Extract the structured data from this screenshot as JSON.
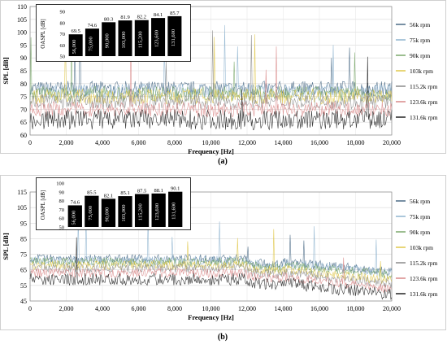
{
  "chart_data": [
    {
      "panel_label": "(a)",
      "type": "line",
      "xlabel": "Frequency [Hz]",
      "ylabel": "SPL [dB]",
      "xlim": [
        0,
        20000
      ],
      "ylim": [
        60,
        110
      ],
      "x_ticks": [
        "0",
        "2,000",
        "4,000",
        "6,000",
        "8,000",
        "10,000",
        "12,000",
        "14,000",
        "16,000",
        "18,000",
        "20,000"
      ],
      "y_ticks": [
        "60",
        "65",
        "70",
        "75",
        "80",
        "85",
        "90",
        "95",
        "100",
        "105",
        "110"
      ],
      "grid": true,
      "legend_position": "right",
      "series": [
        {
          "name": "56k rpm",
          "color": "#4a6a86",
          "approx_level_db": 78
        },
        {
          "name": "75k rpm",
          "color": "#8fb4cf",
          "approx_level_db": 77
        },
        {
          "name": "90k rpm",
          "color": "#7aa86a",
          "approx_level_db": 76
        },
        {
          "name": "103k rpm",
          "color": "#e0c84a",
          "approx_level_db": 75
        },
        {
          "name": "115.2k rpm",
          "color": "#8a8a8a",
          "approx_level_db": 73
        },
        {
          "name": "123.6k rpm",
          "color": "#d98888",
          "approx_level_db": 70
        },
        {
          "name": "131.6k rpm",
          "color": "#222222",
          "approx_level_db": 66
        }
      ],
      "inset": {
        "type": "bar",
        "ylabel": "OASPL [dB]",
        "ylim": [
          50,
          90
        ],
        "y_ticks": [
          "50",
          "60",
          "70",
          "80",
          "90"
        ],
        "categories": [
          "56,000",
          "75,000",
          "90,000",
          "103,000",
          "115,200",
          "123,600",
          "131,600"
        ],
        "values": [
          69.5,
          74.6,
          80.3,
          81.9,
          82.2,
          84.1,
          85.7
        ],
        "value_labels": [
          "69.5",
          "74.6",
          "80.3",
          "81.9",
          "82.2",
          "84.1",
          "85.7"
        ],
        "bar_color": "#000000"
      }
    },
    {
      "panel_label": "(b)",
      "type": "line",
      "xlabel": "Frequency [Hz]",
      "ylabel": "SPL [dB]",
      "xlim": [
        0,
        20000
      ],
      "ylim": [
        45,
        115
      ],
      "x_ticks": [
        "0",
        "2,000",
        "4,000",
        "6,000",
        "8,000",
        "10,000",
        "12,000",
        "14,000",
        "16,000",
        "18,000",
        "20,000"
      ],
      "y_ticks": [
        "45",
        "55",
        "65",
        "75",
        "85",
        "95",
        "105",
        "115"
      ],
      "grid": true,
      "legend_position": "right",
      "series": [
        {
          "name": "56k rpm",
          "color": "#4a6a86",
          "approx_level_db": 72
        },
        {
          "name": "75k rpm",
          "color": "#8fb4cf",
          "approx_level_db": 71
        },
        {
          "name": "90k rpm",
          "color": "#7aa86a",
          "approx_level_db": 70
        },
        {
          "name": "103k rpm",
          "color": "#e0c84a",
          "approx_level_db": 68
        },
        {
          "name": "115.2k rpm",
          "color": "#8a8a8a",
          "approx_level_db": 66
        },
        {
          "name": "123.6k rpm",
          "color": "#d98888",
          "approx_level_db": 63
        },
        {
          "name": "131.6k rpm",
          "color": "#222222",
          "approx_level_db": 59
        }
      ],
      "inset": {
        "type": "bar",
        "ylabel": "OASPL [dB]",
        "ylim": [
          50,
          100
        ],
        "y_ticks": [
          "50",
          "60",
          "70",
          "80",
          "90",
          "100"
        ],
        "categories": [
          "56,000",
          "75,000",
          "90,000",
          "103,000",
          "115,200",
          "123,600",
          "131,600"
        ],
        "values": [
          74.6,
          85.5,
          82.1,
          85.1,
          87.5,
          88.1,
          90.1
        ],
        "value_labels": [
          "74.6",
          "85.5",
          "82.1",
          "85.1",
          "87.5",
          "88.1",
          "90.1"
        ],
        "bar_color": "#000000"
      }
    }
  ]
}
